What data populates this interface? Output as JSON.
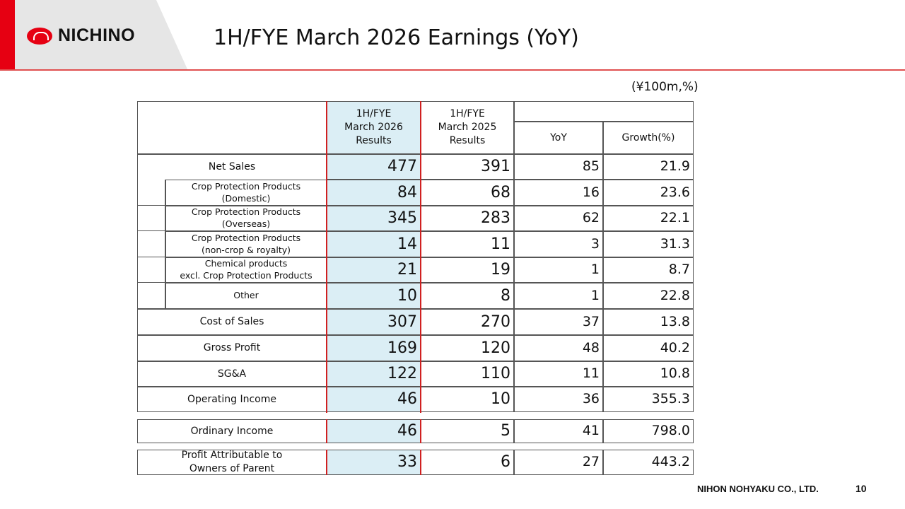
{
  "header": {
    "logo": "NICHINO",
    "title": "1H/FYE March 2026 Earnings  (YoY)",
    "unit": "(¥100m,%)"
  },
  "table": {
    "columns": [
      "1H/FYE\nMarch 2026\nResults",
      "1H/FYE\nMarch 2025\nResults",
      "YoY",
      "Growth(%)"
    ],
    "rows": [
      {
        "label": "Net Sales",
        "sub": false,
        "values": [
          "477",
          "391",
          "85",
          "21.9"
        ]
      },
      {
        "label": "Crop Protection Products (Domestic)",
        "sub": true,
        "values": [
          "84",
          "68",
          "16",
          "23.6"
        ]
      },
      {
        "label": "Crop Protection Products (Overseas)",
        "sub": true,
        "values": [
          "345",
          "283",
          "62",
          "22.1"
        ]
      },
      {
        "label": "Crop Protection Products\n(non-crop & royalty)",
        "sub": true,
        "values": [
          "14",
          "11",
          "3",
          "31.3"
        ]
      },
      {
        "label": "Chemical products\nexcl. Crop Protection Products",
        "sub": true,
        "values": [
          "21",
          "19",
          "1",
          "8.7"
        ]
      },
      {
        "label": "Other",
        "sub": true,
        "values": [
          "10",
          "8",
          "1",
          "22.8"
        ]
      },
      {
        "label": "Cost of Sales",
        "sub": false,
        "values": [
          "307",
          "270",
          "37",
          "13.8"
        ]
      },
      {
        "label": "Gross Profit",
        "sub": false,
        "values": [
          "169",
          "120",
          "48",
          "40.2"
        ]
      },
      {
        "label": "SG&A",
        "sub": false,
        "values": [
          "122",
          "110",
          "11",
          "10.8"
        ]
      },
      {
        "label": "Operating Income",
        "sub": false,
        "values": [
          "46",
          "10",
          "36",
          "355.3"
        ]
      },
      {
        "label": "Ordinary Income",
        "sub": false,
        "values": [
          "46",
          "5",
          "41",
          "798.0"
        ]
      },
      {
        "label": "Profit Attributable to\nOwners of Parent",
        "sub": false,
        "values": [
          "33",
          "6",
          "27",
          "443.2"
        ]
      }
    ]
  },
  "footer": {
    "company": "NIHON NOHYAKU CO., LTD.",
    "page": "10"
  }
}
